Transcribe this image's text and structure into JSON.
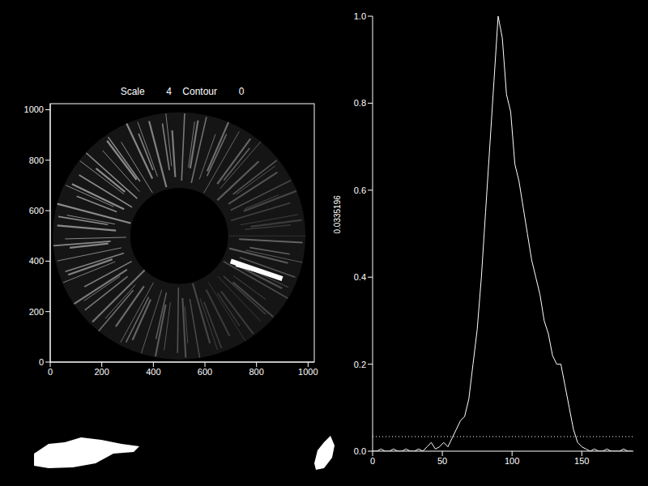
{
  "chart_data": [
    {
      "type": "image",
      "title": "Scale        4    Contour        0",
      "xlim": [
        0,
        1024
      ],
      "ylim": [
        0,
        1024
      ],
      "xticks": [
        0,
        200,
        400,
        600,
        800,
        1000
      ],
      "yticks": [
        0,
        200,
        400,
        600,
        800,
        1000
      ]
    },
    {
      "type": "line",
      "ylabel": "0.0335196",
      "threshold": 0.0335196,
      "color": "#ffffff",
      "xlim": [
        0,
        187
      ],
      "ylim": [
        0,
        1
      ],
      "xticks": [
        0,
        50,
        100,
        150
      ],
      "yticks": [
        {
          "value": 0,
          "label": "0.0"
        },
        0.2,
        0.4,
        0.6,
        0.8,
        {
          "value": 1,
          "label": "1.0"
        }
      ],
      "x": [
        0,
        3,
        6,
        9,
        12,
        15,
        18,
        21,
        24,
        27,
        30,
        33,
        36,
        39,
        42,
        45,
        48,
        51,
        54,
        57,
        60,
        63,
        66,
        69,
        72,
        75,
        78,
        81,
        84,
        87,
        90,
        93,
        96,
        99,
        102,
        105,
        108,
        111,
        114,
        117,
        120,
        123,
        126,
        129,
        132,
        135,
        138,
        141,
        144,
        147,
        150,
        153,
        156,
        159,
        162,
        165,
        168,
        171,
        174,
        177,
        180,
        183,
        186
      ],
      "values": [
        0,
        0,
        0.005,
        0,
        0,
        0.005,
        0,
        0,
        0.005,
        0,
        0,
        0.005,
        0,
        0.01,
        0.02,
        0.005,
        0.01,
        0.02,
        0.01,
        0.03,
        0.05,
        0.07,
        0.08,
        0.12,
        0.2,
        0.28,
        0.4,
        0.55,
        0.7,
        0.85,
        1.0,
        0.95,
        0.82,
        0.78,
        0.66,
        0.62,
        0.56,
        0.5,
        0.44,
        0.4,
        0.36,
        0.3,
        0.27,
        0.22,
        0.2,
        0.2,
        0.15,
        0.1,
        0.05,
        0.02,
        0.01,
        0.005,
        0,
        0.005,
        0,
        0,
        0.005,
        0,
        0,
        0,
        0.005,
        0,
        0
      ]
    }
  ]
}
